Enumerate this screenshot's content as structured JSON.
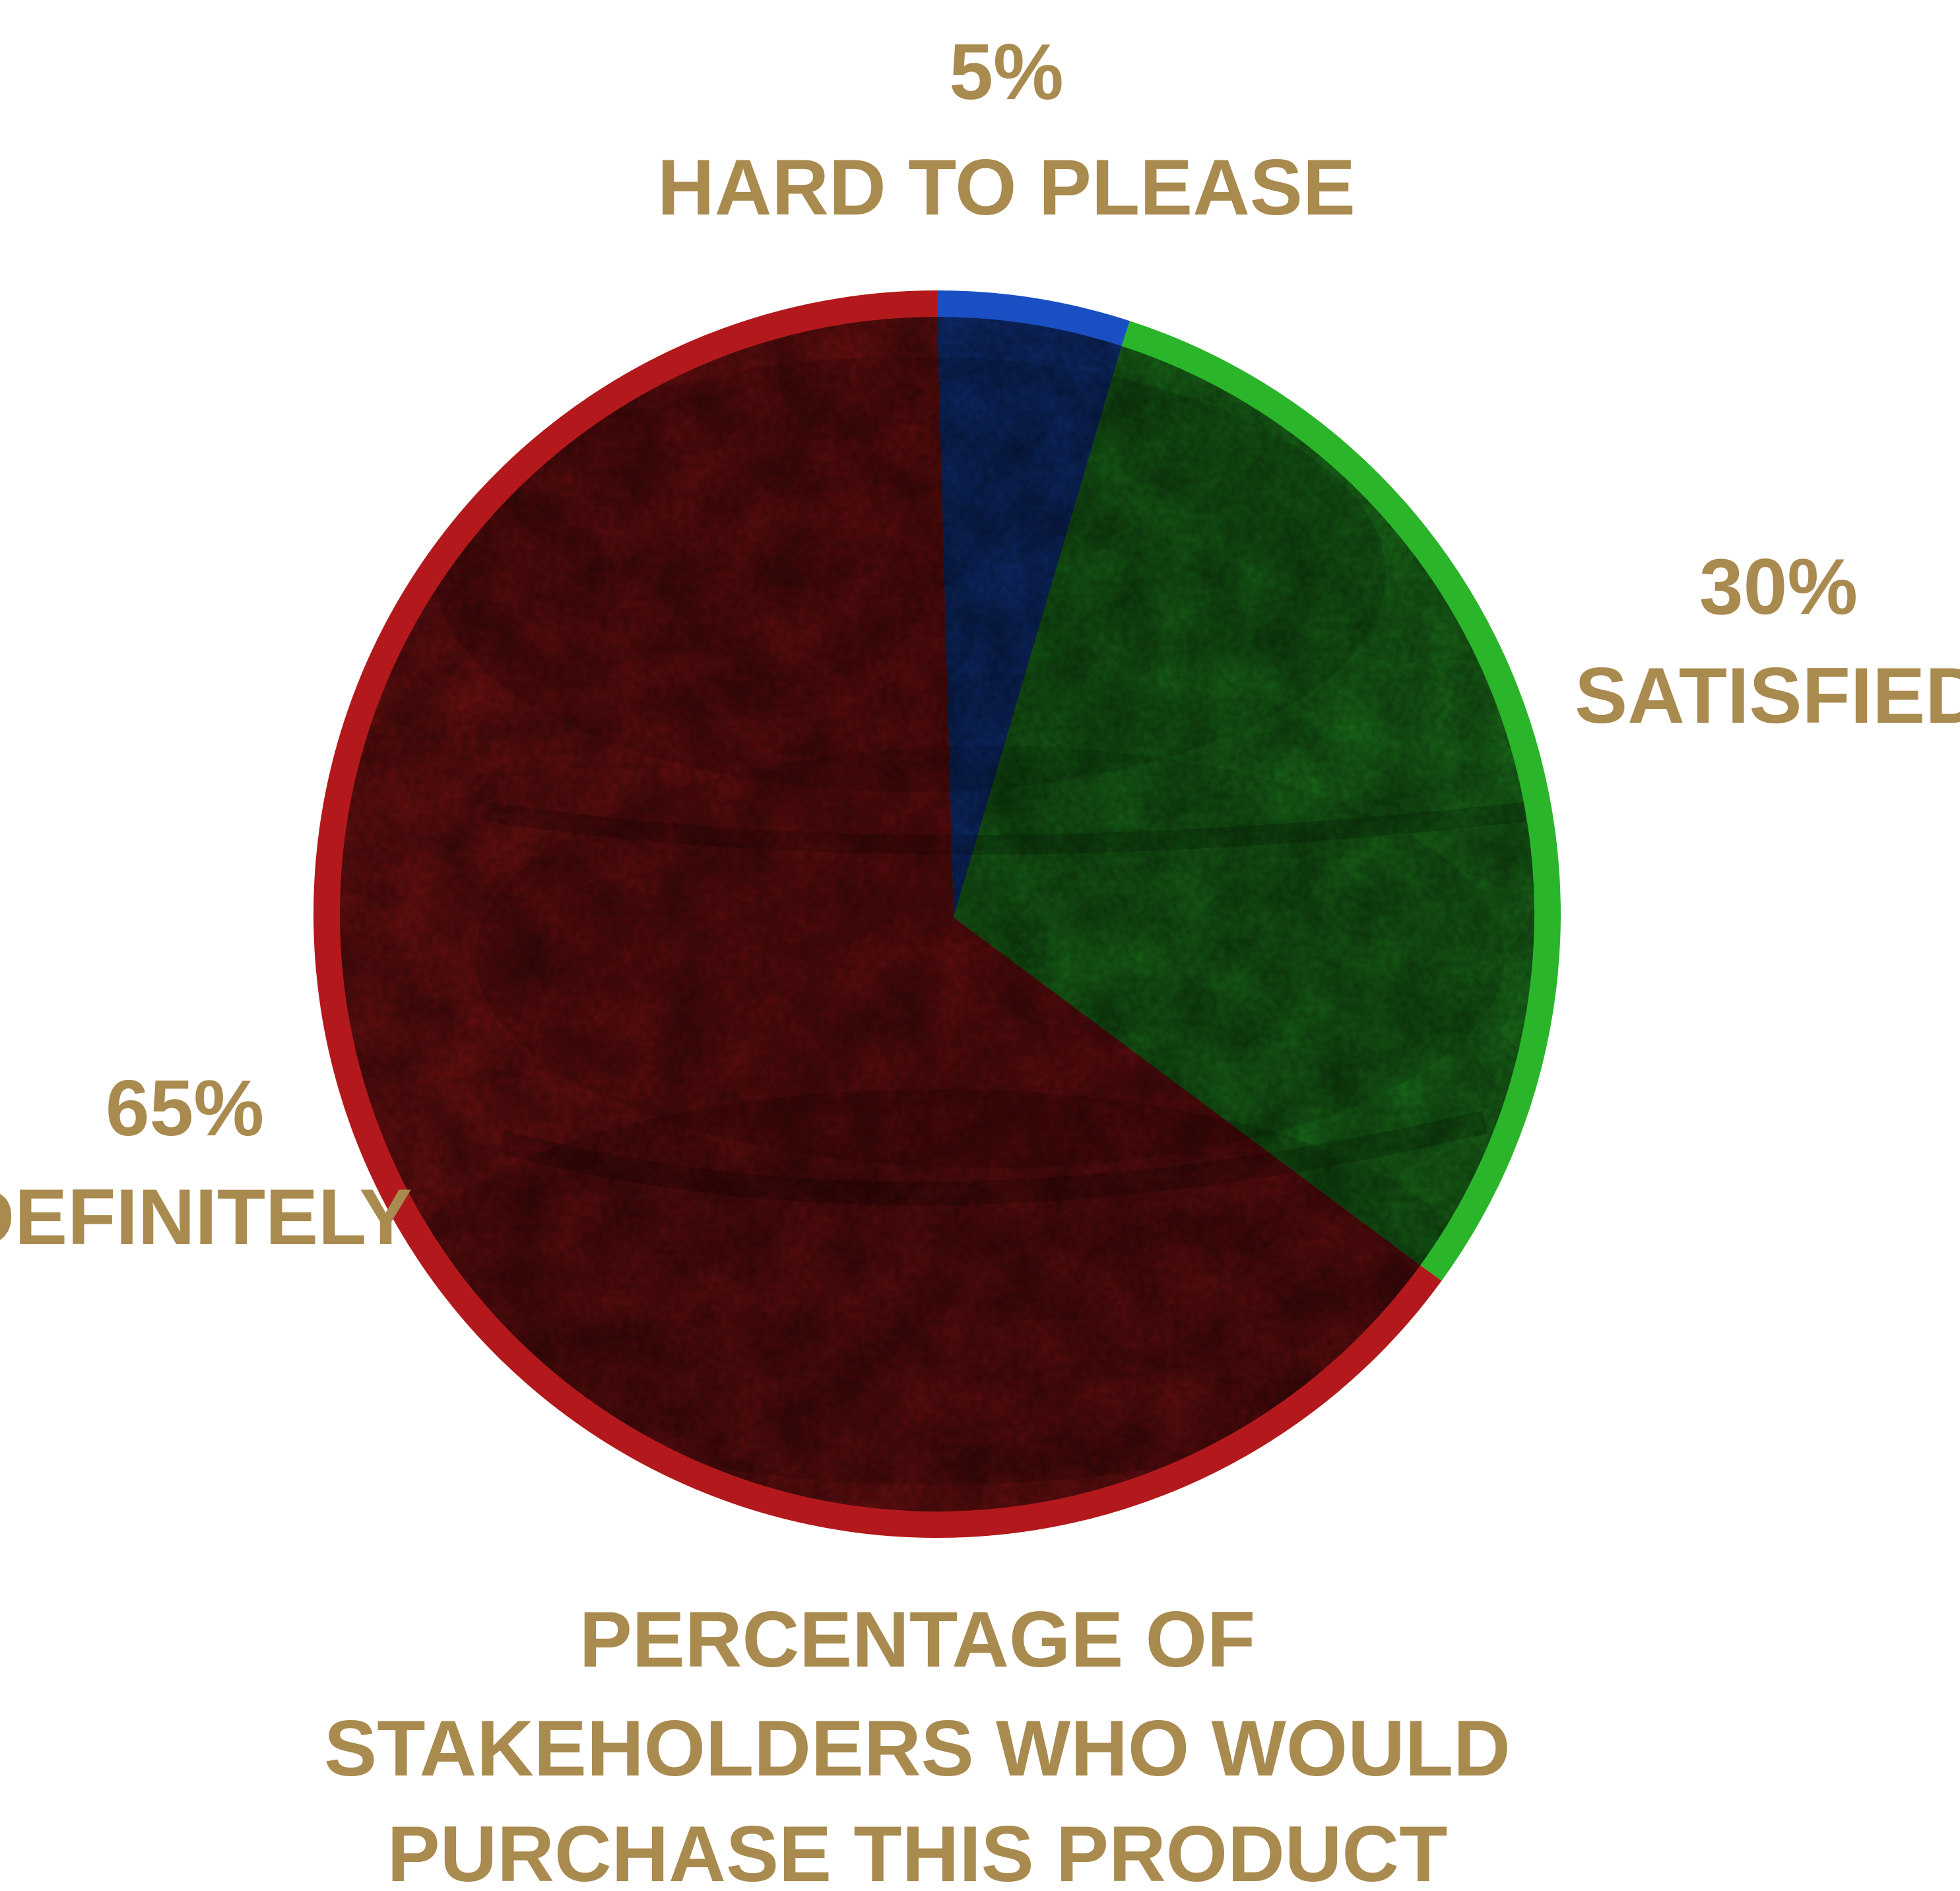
{
  "chart_data": {
    "type": "pie",
    "slices": [
      {
        "percent_label": "5%",
        "name": "HARD TO PLEASE",
        "value": 5,
        "color": "#1a4fc4"
      },
      {
        "percent_label": "30%",
        "name": "SATISFIED",
        "value": 30,
        "color": "#2bb52b"
      },
      {
        "percent_label": "65%",
        "name": "DEFINITELY",
        "value": 65,
        "color": "#b3191c"
      }
    ],
    "caption_lines": [
      "PERCENTAGE OF",
      "STAKEHOLDERS WHO WOULD",
      "PURCHASE THIS PRODUCT"
    ]
  },
  "colors": {
    "label": "#a98a4f",
    "background": "#ffffff"
  }
}
